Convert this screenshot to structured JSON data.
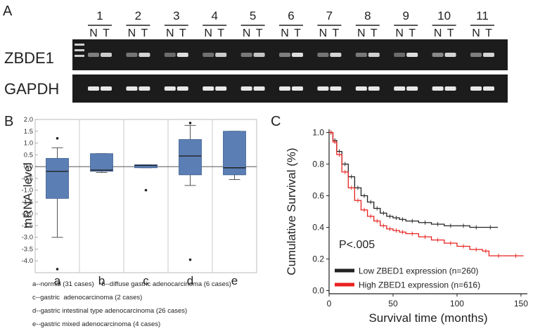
{
  "panel_a": {
    "label": "A",
    "lanes": [
      "1",
      "2",
      "3",
      "4",
      "5",
      "6",
      "7",
      "8",
      "9",
      "10",
      "11"
    ],
    "normal_label": "N",
    "tumor_label": "T",
    "rows": [
      {
        "name": "ZBDE1",
        "normal_intensity": [
          0.35,
          0.3,
          0.25,
          0.28,
          0.32,
          0.35,
          0.3,
          0.32,
          0.25,
          0.4,
          0.35
        ],
        "tumor_intensity": [
          0.75,
          0.8,
          0.85,
          0.75,
          0.72,
          0.85,
          0.8,
          0.78,
          0.85,
          0.8,
          0.8
        ]
      },
      {
        "name": "GAPDH",
        "normal_intensity": [
          0.9,
          0.9,
          0.9,
          0.9,
          0.9,
          0.9,
          0.9,
          0.9,
          0.9,
          0.9,
          0.9
        ],
        "tumor_intensity": [
          0.9,
          0.9,
          0.9,
          0.9,
          0.9,
          0.9,
          0.9,
          0.9,
          0.9,
          0.9,
          0.9
        ]
      }
    ]
  },
  "panel_b": {
    "label": "B",
    "chart_data": {
      "type": "box",
      "ylabel": "mRNA  level",
      "ylim": [
        -4.5,
        2.0
      ],
      "yticks": [
        "2.0",
        "1.5",
        "1.0",
        "0.5",
        "0.0",
        "-0.5",
        "-1.0",
        "-1.5",
        "-2.0",
        "-2.5",
        "-3.0",
        "-3.5",
        "-4.0"
      ],
      "ytick_values": [
        2.0,
        1.5,
        1.0,
        0.5,
        0.0,
        -0.5,
        -1.0,
        -1.5,
        -2.0,
        -2.5,
        -3.0,
        -3.5,
        -4.0
      ],
      "categories": [
        "a",
        "b",
        "c",
        "d",
        "e"
      ],
      "boxes": [
        {
          "whisker_low": -3.0,
          "q1": -1.35,
          "median": -0.2,
          "q3": 0.35,
          "whisker_high": 0.8,
          "outliers": [
            1.2,
            -4.35
          ]
        },
        {
          "whisker_low": -0.25,
          "q1": -0.2,
          "median": -0.15,
          "q3": 0.55,
          "whisker_high": 0.55,
          "outliers": []
        },
        {
          "whisker_low": -0.05,
          "q1": -0.05,
          "median": 0.05,
          "q3": 0.08,
          "whisker_high": 0.08,
          "outliers": [
            -1.0
          ]
        },
        {
          "whisker_low": -0.8,
          "q1": -0.35,
          "median": 0.45,
          "q3": 1.15,
          "whisker_high": 1.75,
          "outliers": [
            1.85,
            -3.95
          ]
        },
        {
          "whisker_low": -0.55,
          "q1": -0.35,
          "median": -0.05,
          "q3": 1.5,
          "whisker_high": 1.5,
          "outliers": []
        }
      ],
      "box_color": "#5b7fb5"
    },
    "legend": [
      "a--normal (31 cases)    b--diffuse gastric adenocarcinoma (6 cases)",
      "c--gastric  adenocarcinoma (2 cases)",
      "d--gastric intestinal type adenocarcinoma (26 cases)",
      "e--gastric mixed adenocarcinoma (4 cases)"
    ]
  },
  "panel_c": {
    "label": "C",
    "chart_data": {
      "type": "line",
      "xlabel": "Survival time (months)",
      "ylabel": "Cumulative Survival (%)",
      "xlim": [
        0,
        155
      ],
      "ylim": [
        -0.02,
        1.02
      ],
      "xticks": [
        "0",
        "50",
        "100",
        "150"
      ],
      "xtick_values": [
        0,
        50,
        100,
        150
      ],
      "yticks": [
        "0.0",
        "0.2",
        "0.4",
        "0.6",
        "0.8",
        "1.0"
      ],
      "ytick_values": [
        0.0,
        0.2,
        0.4,
        0.6,
        0.8,
        1.0
      ],
      "annotation": "P<.005",
      "series": [
        {
          "name": "Low ZBED1 expression (n=260)",
          "color": "#222222",
          "x": [
            0,
            3,
            6,
            10,
            15,
            20,
            25,
            30,
            35,
            40,
            45,
            50,
            55,
            60,
            70,
            80,
            90,
            100,
            110,
            120,
            132
          ],
          "y": [
            1.0,
            0.95,
            0.88,
            0.8,
            0.72,
            0.65,
            0.6,
            0.56,
            0.52,
            0.49,
            0.47,
            0.46,
            0.45,
            0.44,
            0.43,
            0.42,
            0.41,
            0.41,
            0.4,
            0.4,
            0.4
          ]
        },
        {
          "name": "High ZBED1 expression (n=616)",
          "color": "#e8221f",
          "x": [
            0,
            3,
            6,
            10,
            15,
            20,
            25,
            30,
            35,
            40,
            45,
            50,
            55,
            60,
            70,
            80,
            90,
            100,
            110,
            120,
            125,
            140,
            152
          ],
          "y": [
            1.0,
            0.94,
            0.86,
            0.75,
            0.65,
            0.57,
            0.51,
            0.47,
            0.44,
            0.41,
            0.39,
            0.38,
            0.37,
            0.36,
            0.34,
            0.32,
            0.3,
            0.28,
            0.26,
            0.25,
            0.22,
            0.22,
            0.22
          ]
        }
      ]
    }
  }
}
